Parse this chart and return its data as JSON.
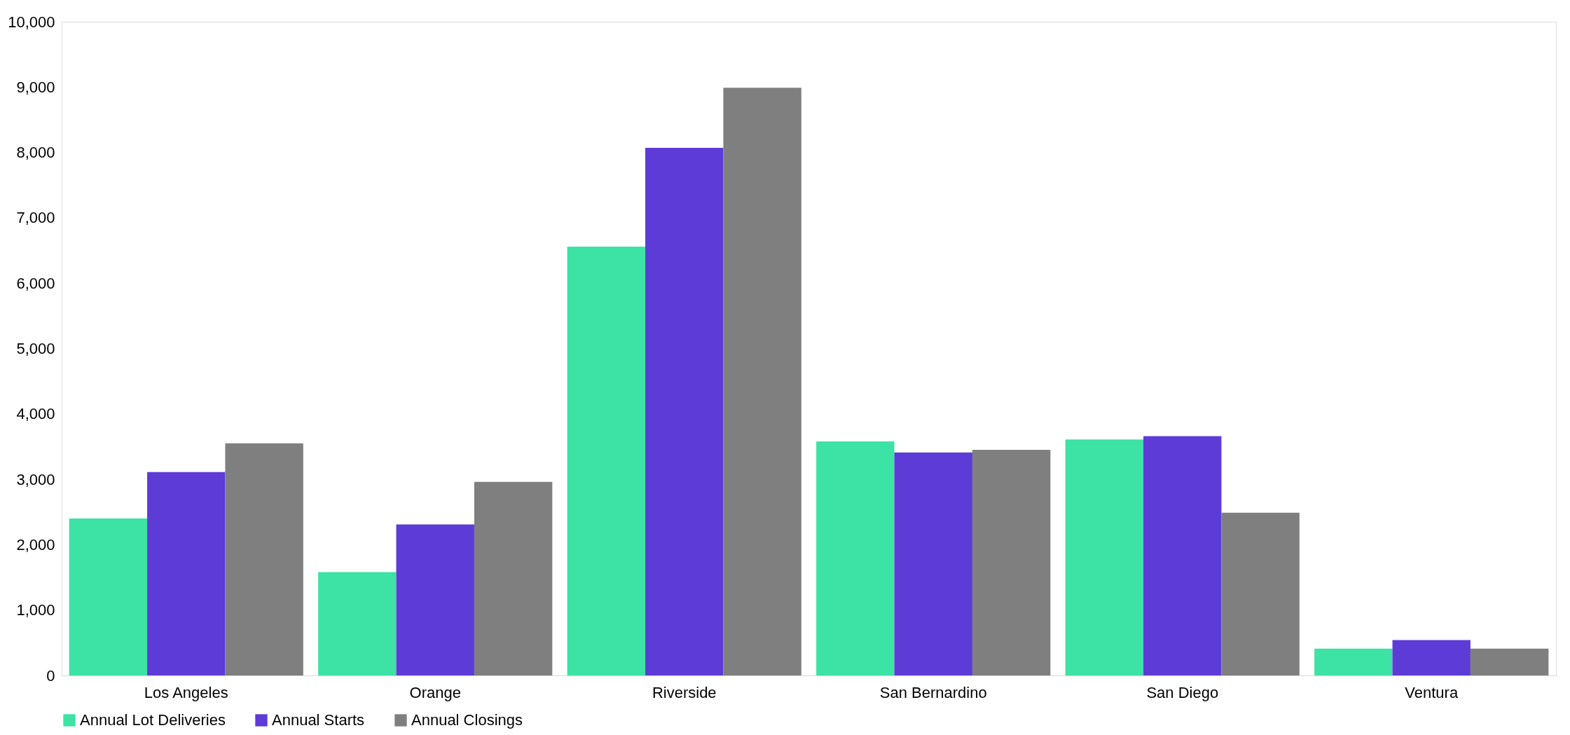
{
  "chart_data": {
    "type": "bar",
    "categories": [
      "Los Angeles",
      "Orange",
      "Riverside",
      "San Bernardino",
      "San Diego",
      "Ventura"
    ],
    "series": [
      {
        "name": "Annual Lot Deliveries",
        "color": "#3de2a5",
        "values": [
          2400,
          1580,
          6560,
          3580,
          3610,
          410
        ]
      },
      {
        "name": "Annual Starts",
        "color": "#5d3bd6",
        "values": [
          3110,
          2310,
          8070,
          3410,
          3660,
          540
        ]
      },
      {
        "name": "Annual Closings",
        "color": "#7f7f7f",
        "values": [
          3550,
          2960,
          8990,
          3450,
          2490,
          410
        ]
      }
    ],
    "ylim": [
      0,
      10000
    ],
    "yticks": [
      0,
      {
        "value": 1000,
        "label": "1,000"
      },
      {
        "value": 2000,
        "label": "2,000"
      },
      {
        "value": 3000,
        "label": "3,000"
      },
      {
        "value": 4000,
        "label": "4,000"
      },
      {
        "value": 5000,
        "label": "5,000"
      },
      {
        "value": 6000,
        "label": "6,000"
      },
      {
        "value": 7000,
        "label": "7,000"
      },
      {
        "value": 8000,
        "label": "8,000"
      },
      {
        "value": 9000,
        "label": "9,000"
      },
      {
        "value": 10000,
        "label": "10,000"
      }
    ],
    "grid": false,
    "legend": "bottom"
  }
}
